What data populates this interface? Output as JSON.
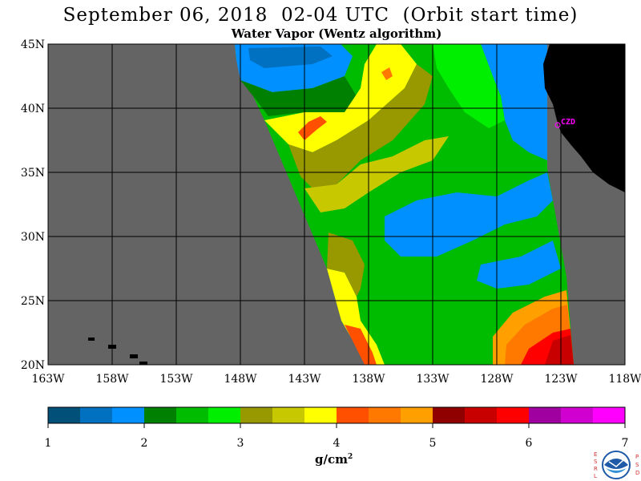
{
  "header": {
    "title": "September 06, 2018  02-04 UTC  (Orbit start time)",
    "subtitle": "Water Vapor (Wentz algorithm)"
  },
  "map": {
    "lat_labels": [
      "45N",
      "40N",
      "35N",
      "30N",
      "25N",
      "20N"
    ],
    "lon_labels": [
      "163W",
      "158W",
      "153W",
      "148W",
      "143W",
      "138W",
      "133W",
      "128W",
      "123W",
      "118W"
    ],
    "station_label": "CZD",
    "lat_range": [
      20,
      45
    ],
    "lon_range": [
      -163,
      -118
    ],
    "background_color": "#646464",
    "land_color": "#000000",
    "station_color": "#ff00ff"
  },
  "colorbar": {
    "tick_labels": [
      "1",
      "2",
      "3",
      "4",
      "5",
      "6",
      "7"
    ],
    "units_text": "g/cm",
    "units_exponent": "2",
    "colors": [
      "#00507a",
      "#0070c0",
      "#0090ff",
      "#008000",
      "#00bc00",
      "#00ee00",
      "#989800",
      "#c8c800",
      "#ffff00",
      "#ff5000",
      "#ff7800",
      "#ffa000",
      "#900000",
      "#c80000",
      "#ff0000",
      "#a000a0",
      "#d000d0",
      "#ff00ff"
    ],
    "range": [
      1,
      7
    ]
  },
  "logo": {
    "left_letters": [
      "E",
      "S",
      "R",
      "L"
    ],
    "right_letters": [
      "P",
      "S",
      "D"
    ],
    "center_text": "NOAA"
  }
}
